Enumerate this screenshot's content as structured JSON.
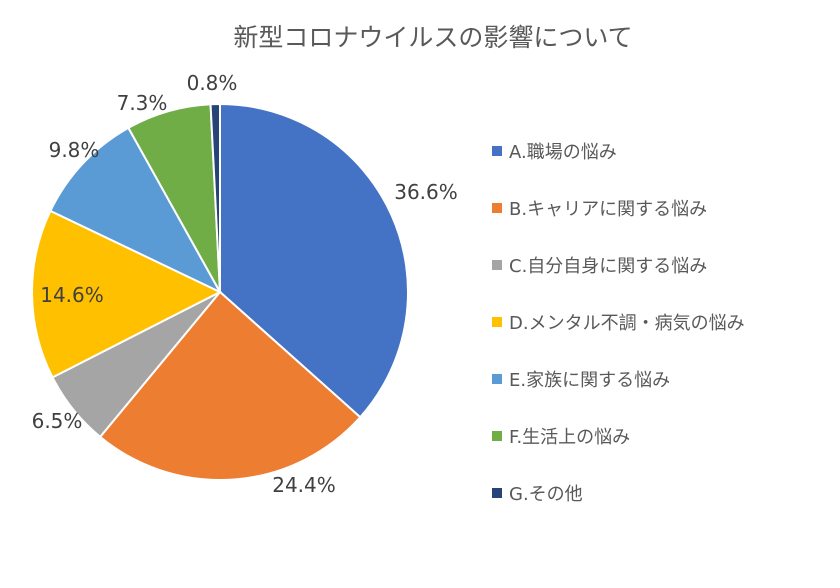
{
  "chart_data": {
    "type": "pie",
    "title": "新型コロナウイルスの影響について",
    "start_angle_deg": 0,
    "direction": "clockwise",
    "legend_position": "right",
    "slices": [
      {
        "label": "A.職場の悩み",
        "value": 36.6,
        "value_label": "36.6%",
        "color": "#4472C4"
      },
      {
        "label": "B.キャリアに関する悩み",
        "value": 24.4,
        "value_label": "24.4%",
        "color": "#ED7D31"
      },
      {
        "label": "C.自分自身に関する悩み",
        "value": 6.5,
        "value_label": "6.5%",
        "color": "#A5A5A5"
      },
      {
        "label": "D.メンタル不調・病気の悩み",
        "value": 14.6,
        "value_label": "14.6%",
        "color": "#FFC000"
      },
      {
        "label": "E.家族に関する悩み",
        "value": 9.8,
        "value_label": "9.8%",
        "color": "#5B9BD5"
      },
      {
        "label": "F.生活上の悩み",
        "value": 7.3,
        "value_label": "7.3%",
        "color": "#70AD47"
      },
      {
        "label": "G.その他",
        "value": 0.8,
        "value_label": "0.8%",
        "color": "#264478"
      }
    ]
  }
}
